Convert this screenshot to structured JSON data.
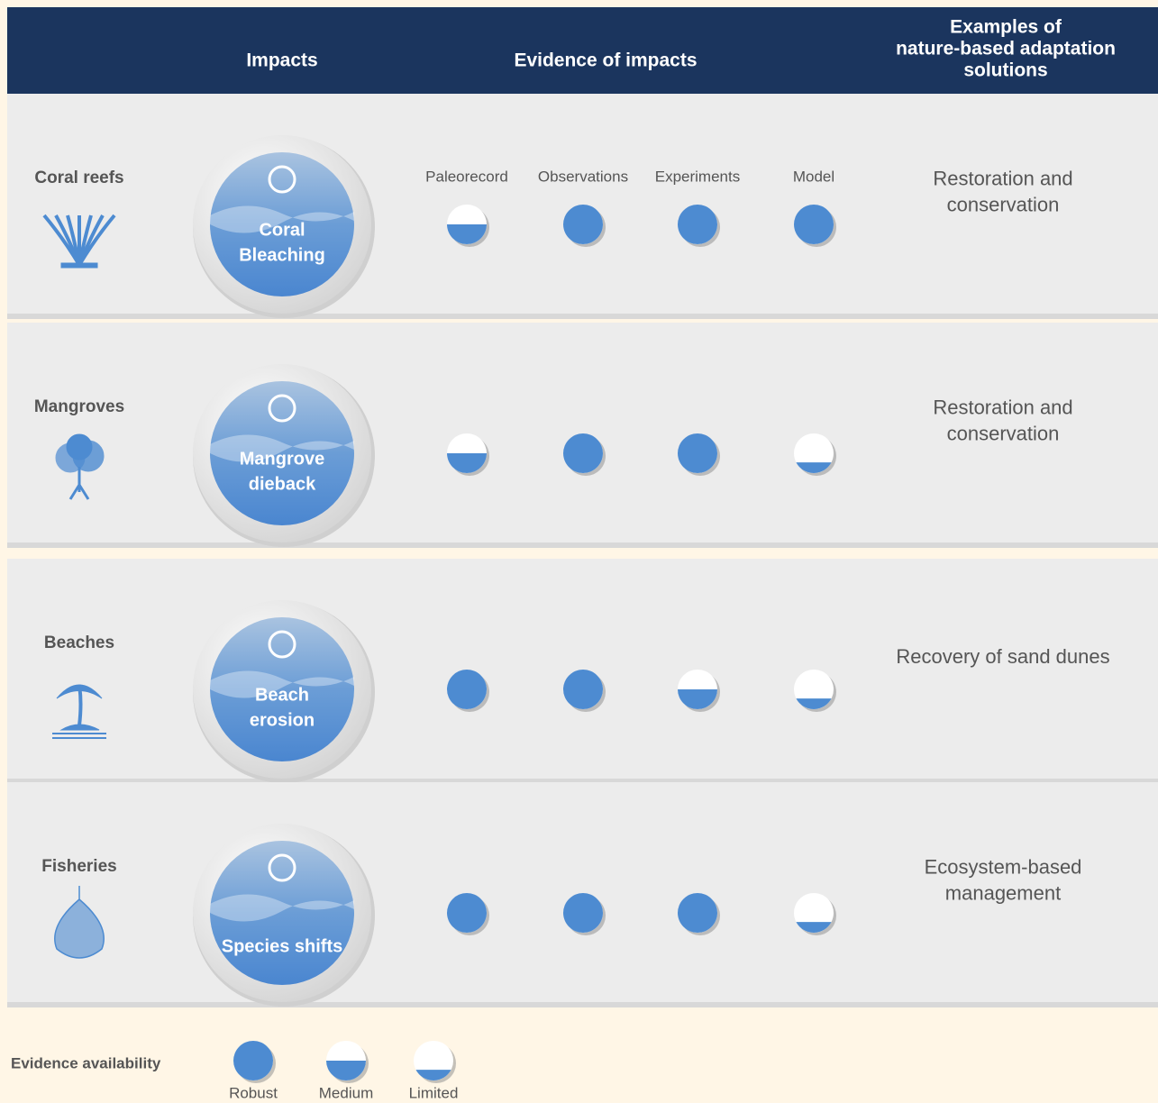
{
  "header": {
    "columns": [
      [
        "Impacts"
      ],
      [
        "Evidence of impacts"
      ],
      [
        "Examples of",
        "nature-based adaptation",
        "solutions"
      ]
    ]
  },
  "evidence_types": [
    "Paleorecord",
    "Observations",
    "Experiments",
    "Model"
  ],
  "rows": [
    {
      "ecosystem": "Coral reefs",
      "impact": [
        "Coral",
        "Bleaching"
      ],
      "evidence": [
        "Medium",
        "Robust",
        "Robust",
        "Robust"
      ],
      "solution": [
        "Restoration and",
        "conservation"
      ]
    },
    {
      "ecosystem": "Mangroves",
      "impact": [
        "Mangrove",
        "dieback"
      ],
      "evidence": [
        "Medium",
        "Robust",
        "Robust",
        "Limited"
      ],
      "solution": [
        "Restoration and",
        "conservation"
      ]
    },
    {
      "ecosystem": "Beaches",
      "impact": [
        "Beach",
        "erosion"
      ],
      "evidence": [
        "Robust",
        "Robust",
        "Medium",
        "Limited"
      ],
      "solution": [
        "Recovery of sand dunes"
      ]
    },
    {
      "ecosystem": "Fisheries",
      "impact": [
        "Species shifts"
      ],
      "evidence": [
        "Robust",
        "Robust",
        "Robust",
        "Limited"
      ],
      "solution": [
        "Ecosystem-based",
        "management"
      ]
    }
  ],
  "legend": {
    "title": "Evidence availability",
    "items": [
      "Robust",
      "Medium",
      "Limited"
    ]
  }
}
